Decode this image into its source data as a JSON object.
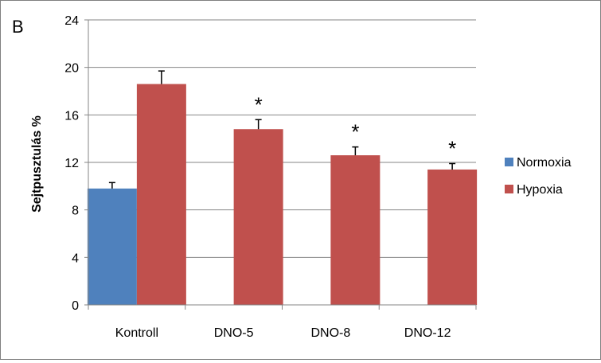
{
  "panel_label": "B",
  "colors": {
    "Normoxia": "#4F81BD",
    "Hypoxia": "#C0504D",
    "grid": "#868686",
    "axis": "#868686"
  },
  "chart_data": {
    "type": "bar",
    "categories": [
      "Kontroll",
      "DNO-5",
      "DNO-8",
      "DNO-12"
    ],
    "series": [
      {
        "name": "Normoxia",
        "values": [
          9.8,
          null,
          null,
          null
        ],
        "errors": [
          0.5,
          null,
          null,
          null
        ]
      },
      {
        "name": "Hypoxia",
        "values": [
          18.6,
          14.8,
          12.6,
          11.4
        ],
        "errors": [
          1.1,
          0.8,
          0.7,
          0.5
        ]
      }
    ],
    "significance": [
      "",
      "*",
      "*",
      "*"
    ],
    "title": "",
    "xlabel": "",
    "ylabel": "Sejtpusztulás %",
    "ylim": [
      0,
      24
    ],
    "yticks": [
      0,
      4,
      8,
      12,
      16,
      20,
      24
    ],
    "grid": true,
    "legend_position": "right"
  }
}
